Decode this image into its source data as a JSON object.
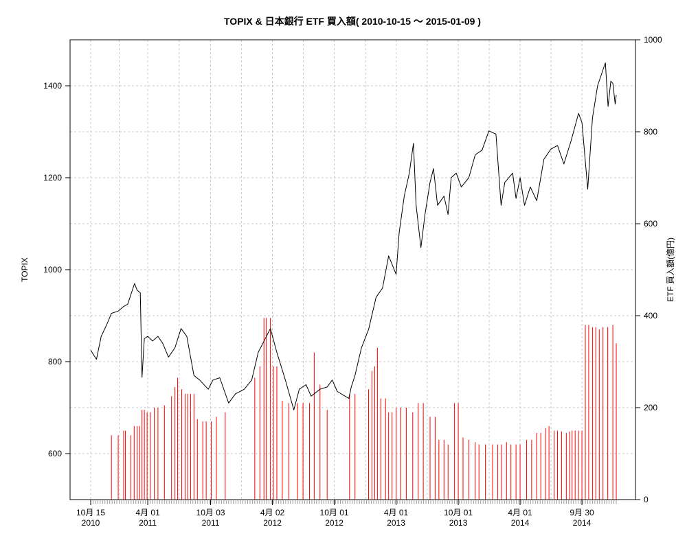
{
  "chart_data": {
    "type": "line",
    "title": "TOPIX & 日本銀行 ETF 買入額( 2010-10-15 〜 2015-01-09 )",
    "xlabel": "",
    "ylabel": "TOPIX",
    "y2label": "ETF 買入額(億円)",
    "x_range": [
      "2010-10-15",
      "2015-01-09"
    ],
    "ylim": [
      500,
      1500
    ],
    "y2lim": [
      0,
      1000
    ],
    "yticks": [
      600,
      800,
      1000,
      1200,
      1400
    ],
    "y2ticks": [
      0,
      200,
      400,
      600,
      800,
      1000
    ],
    "grid": true,
    "x_ticks": [
      {
        "date": "2010-10-15",
        "line1": "10月 15",
        "line2": "2010"
      },
      {
        "date": "2011-04-01",
        "line1": "4月 01",
        "line2": "2011"
      },
      {
        "date": "2011-10-03",
        "line1": "10月 03",
        "line2": "2011"
      },
      {
        "date": "2012-04-02",
        "line1": "4月 02",
        "line2": "2012"
      },
      {
        "date": "2012-10-01",
        "line1": "10月 01",
        "line2": "2012"
      },
      {
        "date": "2013-04-01",
        "line1": "4月 01",
        "line2": "2013"
      },
      {
        "date": "2013-10-01",
        "line1": "10月 01",
        "line2": "2013"
      },
      {
        "date": "2014-04-01",
        "line1": "4月 01",
        "line2": "2014"
      },
      {
        "date": "2014-09-30",
        "line1": "9月 30",
        "line2": "2014"
      }
    ],
    "series": [
      {
        "axis": "left",
        "type": "line",
        "color": "#000000",
        "points": [
          [
            "2010-10-15",
            825
          ],
          [
            "2010-11-01",
            805
          ],
          [
            "2010-11-15",
            855
          ],
          [
            "2010-12-01",
            880
          ],
          [
            "2010-12-15",
            905
          ],
          [
            "2011-01-04",
            910
          ],
          [
            "2011-01-20",
            920
          ],
          [
            "2011-02-01",
            925
          ],
          [
            "2011-02-21",
            970
          ],
          [
            "2011-03-01",
            955
          ],
          [
            "2011-03-10",
            950
          ],
          [
            "2011-03-15",
            766
          ],
          [
            "2011-03-22",
            850
          ],
          [
            "2011-04-01",
            855
          ],
          [
            "2011-04-15",
            845
          ],
          [
            "2011-05-01",
            855
          ],
          [
            "2011-05-15",
            840
          ],
          [
            "2011-06-01",
            810
          ],
          [
            "2011-06-20",
            830
          ],
          [
            "2011-07-08",
            872
          ],
          [
            "2011-07-25",
            855
          ],
          [
            "2011-08-05",
            810
          ],
          [
            "2011-08-15",
            770
          ],
          [
            "2011-09-01",
            760
          ],
          [
            "2011-09-26",
            740
          ],
          [
            "2011-10-10",
            760
          ],
          [
            "2011-10-30",
            765
          ],
          [
            "2011-11-25",
            710
          ],
          [
            "2011-12-15",
            730
          ],
          [
            "2012-01-10",
            740
          ],
          [
            "2012-02-01",
            760
          ],
          [
            "2012-02-20",
            820
          ],
          [
            "2012-03-27",
            872
          ],
          [
            "2012-04-15",
            820
          ],
          [
            "2012-05-10",
            760
          ],
          [
            "2012-06-04",
            695
          ],
          [
            "2012-06-20",
            740
          ],
          [
            "2012-07-10",
            750
          ],
          [
            "2012-07-25",
            725
          ],
          [
            "2012-08-20",
            740
          ],
          [
            "2012-09-10",
            745
          ],
          [
            "2012-09-25",
            760
          ],
          [
            "2012-10-10",
            735
          ],
          [
            "2012-11-13",
            720
          ],
          [
            "2012-11-20",
            745
          ],
          [
            "2012-12-01",
            770
          ],
          [
            "2012-12-20",
            830
          ],
          [
            "2013-01-10",
            870
          ],
          [
            "2013-02-01",
            940
          ],
          [
            "2013-02-20",
            960
          ],
          [
            "2013-03-10",
            1030
          ],
          [
            "2013-04-01",
            990
          ],
          [
            "2013-04-10",
            1080
          ],
          [
            "2013-04-25",
            1160
          ],
          [
            "2013-05-10",
            1210
          ],
          [
            "2013-05-22",
            1275
          ],
          [
            "2013-05-30",
            1140
          ],
          [
            "2013-06-13",
            1048
          ],
          [
            "2013-06-25",
            1120
          ],
          [
            "2013-07-10",
            1190
          ],
          [
            "2013-07-20",
            1220
          ],
          [
            "2013-08-01",
            1140
          ],
          [
            "2013-08-20",
            1160
          ],
          [
            "2013-09-01",
            1120
          ],
          [
            "2013-09-10",
            1200
          ],
          [
            "2013-09-25",
            1210
          ],
          [
            "2013-10-10",
            1180
          ],
          [
            "2013-11-01",
            1200
          ],
          [
            "2013-11-20",
            1250
          ],
          [
            "2013-12-10",
            1260
          ],
          [
            "2013-12-30",
            1302
          ],
          [
            "2014-01-20",
            1295
          ],
          [
            "2014-02-04",
            1140
          ],
          [
            "2014-02-15",
            1190
          ],
          [
            "2014-03-10",
            1210
          ],
          [
            "2014-03-20",
            1155
          ],
          [
            "2014-04-01",
            1200
          ],
          [
            "2014-04-14",
            1140
          ],
          [
            "2014-05-01",
            1180
          ],
          [
            "2014-05-20",
            1150
          ],
          [
            "2014-06-10",
            1240
          ],
          [
            "2014-06-30",
            1262
          ],
          [
            "2014-07-20",
            1270
          ],
          [
            "2014-08-08",
            1230
          ],
          [
            "2014-08-29",
            1280
          ],
          [
            "2014-09-20",
            1340
          ],
          [
            "2014-09-30",
            1320
          ],
          [
            "2014-10-17",
            1175
          ],
          [
            "2014-10-31",
            1330
          ],
          [
            "2014-11-15",
            1400
          ],
          [
            "2014-12-08",
            1450
          ],
          [
            "2014-12-16",
            1355
          ],
          [
            "2014-12-24",
            1410
          ],
          [
            "2014-12-30",
            1405
          ],
          [
            "2015-01-06",
            1360
          ],
          [
            "2015-01-09",
            1380
          ]
        ]
      },
      {
        "axis": "right",
        "type": "bar",
        "color": "#ff0000",
        "points": [
          [
            "2010-12-15",
            140
          ],
          [
            "2011-01-04",
            140
          ],
          [
            "2011-01-20",
            150
          ],
          [
            "2011-01-25",
            150
          ],
          [
            "2011-02-10",
            140
          ],
          [
            "2011-02-20",
            160
          ],
          [
            "2011-03-01",
            160
          ],
          [
            "2011-03-08",
            160
          ],
          [
            "2011-03-15",
            195
          ],
          [
            "2011-03-22",
            195
          ],
          [
            "2011-03-30",
            190
          ],
          [
            "2011-04-08",
            190
          ],
          [
            "2011-04-20",
            200
          ],
          [
            "2011-05-01",
            200
          ],
          [
            "2011-05-20",
            205
          ],
          [
            "2011-06-10",
            225
          ],
          [
            "2011-06-20",
            245
          ],
          [
            "2011-06-28",
            265
          ],
          [
            "2011-07-10",
            240
          ],
          [
            "2011-07-20",
            230
          ],
          [
            "2011-07-28",
            230
          ],
          [
            "2011-08-05",
            230
          ],
          [
            "2011-08-15",
            230
          ],
          [
            "2011-08-25",
            175
          ],
          [
            "2011-09-10",
            170
          ],
          [
            "2011-09-20",
            170
          ],
          [
            "2011-10-05",
            170
          ],
          [
            "2011-10-20",
            180
          ],
          [
            "2011-11-15",
            190
          ],
          [
            "2012-02-10",
            265
          ],
          [
            "2012-02-25",
            290
          ],
          [
            "2012-03-08",
            395
          ],
          [
            "2012-03-15",
            395
          ],
          [
            "2012-03-27",
            395
          ],
          [
            "2012-04-05",
            290
          ],
          [
            "2012-04-15",
            290
          ],
          [
            "2012-05-01",
            215
          ],
          [
            "2012-05-20",
            210
          ],
          [
            "2012-06-15",
            210
          ],
          [
            "2012-07-01",
            210
          ],
          [
            "2012-07-20",
            210
          ],
          [
            "2012-08-03",
            320
          ],
          [
            "2012-08-20",
            250
          ],
          [
            "2012-09-10",
            195
          ],
          [
            "2012-11-15",
            230
          ],
          [
            "2012-12-01",
            230
          ],
          [
            "2013-01-10",
            240
          ],
          [
            "2013-01-20",
            280
          ],
          [
            "2013-01-28",
            290
          ],
          [
            "2013-02-05",
            330
          ],
          [
            "2013-02-15",
            220
          ],
          [
            "2013-03-01",
            220
          ],
          [
            "2013-03-10",
            190
          ],
          [
            "2013-03-20",
            190
          ],
          [
            "2013-04-01",
            200
          ],
          [
            "2013-04-15",
            200
          ],
          [
            "2013-05-01",
            200
          ],
          [
            "2013-05-20",
            190
          ],
          [
            "2013-06-05",
            210
          ],
          [
            "2013-06-20",
            210
          ],
          [
            "2013-07-10",
            180
          ],
          [
            "2013-07-25",
            180
          ],
          [
            "2013-08-05",
            130
          ],
          [
            "2013-08-20",
            130
          ],
          [
            "2013-09-01",
            120
          ],
          [
            "2013-09-20",
            210
          ],
          [
            "2013-10-01",
            210
          ],
          [
            "2013-10-15",
            135
          ],
          [
            "2013-11-01",
            130
          ],
          [
            "2013-11-20",
            125
          ],
          [
            "2013-12-01",
            120
          ],
          [
            "2013-12-20",
            120
          ],
          [
            "2014-01-10",
            120
          ],
          [
            "2014-01-25",
            120
          ],
          [
            "2014-02-05",
            120
          ],
          [
            "2014-02-20",
            125
          ],
          [
            "2014-03-05",
            120
          ],
          [
            "2014-03-20",
            120
          ],
          [
            "2014-04-01",
            120
          ],
          [
            "2014-04-20",
            130
          ],
          [
            "2014-05-05",
            130
          ],
          [
            "2014-05-20",
            145
          ],
          [
            "2014-06-01",
            145
          ],
          [
            "2014-06-15",
            155
          ],
          [
            "2014-06-25",
            160
          ],
          [
            "2014-07-10",
            150
          ],
          [
            "2014-07-20",
            150
          ],
          [
            "2014-08-01",
            148
          ],
          [
            "2014-08-15",
            145
          ],
          [
            "2014-08-25",
            148
          ],
          [
            "2014-09-01",
            150
          ],
          [
            "2014-09-10",
            150
          ],
          [
            "2014-09-20",
            150
          ],
          [
            "2014-09-30",
            150
          ],
          [
            "2014-10-10",
            380
          ],
          [
            "2014-10-20",
            380
          ],
          [
            "2014-10-31",
            375
          ],
          [
            "2014-11-10",
            375
          ],
          [
            "2014-11-20",
            370
          ],
          [
            "2014-12-01",
            375
          ],
          [
            "2014-12-15",
            375
          ],
          [
            "2014-12-30",
            380
          ],
          [
            "2015-01-09",
            340
          ]
        ]
      }
    ]
  }
}
